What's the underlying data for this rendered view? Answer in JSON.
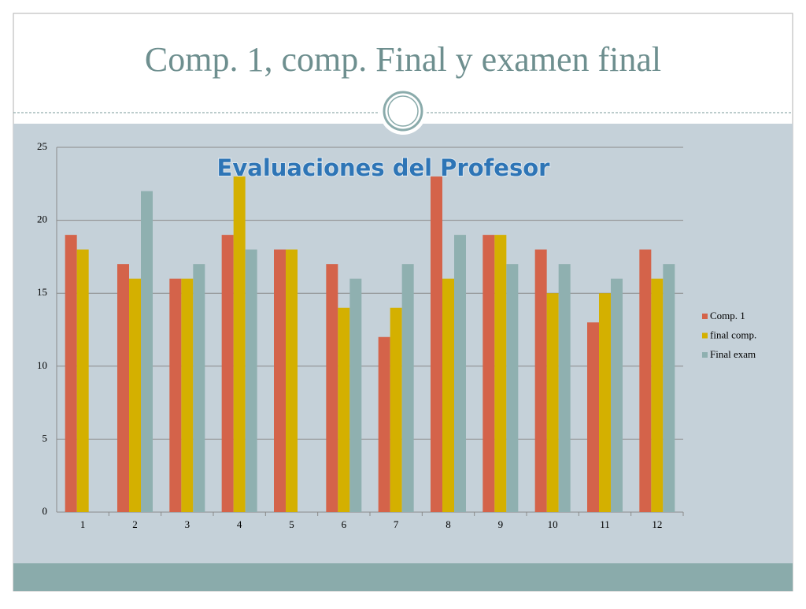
{
  "slide_title": "Comp. 1, comp. Final y examen final",
  "chart_data": {
    "type": "bar",
    "title": "Evaluaciones del  Profesor",
    "categories": [
      "1",
      "2",
      "3",
      "4",
      "5",
      "6",
      "7",
      "8",
      "9",
      "10",
      "11",
      "12"
    ],
    "series": [
      {
        "name": "Comp. 1",
        "color": "#d4634a",
        "values": [
          19,
          17,
          16,
          19,
          18,
          17,
          12,
          23,
          19,
          18,
          13,
          18
        ]
      },
      {
        "name": "final comp.",
        "color": "#d4b000",
        "values": [
          18,
          16,
          16,
          23,
          18,
          14,
          14,
          16,
          19,
          15,
          15,
          16
        ]
      },
      {
        "name": "Final exam",
        "color": "#8fb0b0",
        "values": [
          null,
          22,
          17,
          18,
          null,
          16,
          17,
          19,
          17,
          17,
          16,
          17
        ]
      }
    ],
    "ylim": [
      0,
      25
    ],
    "yticks": [
      0,
      5,
      10,
      15,
      20,
      25
    ],
    "grid": true,
    "legend": "right"
  }
}
